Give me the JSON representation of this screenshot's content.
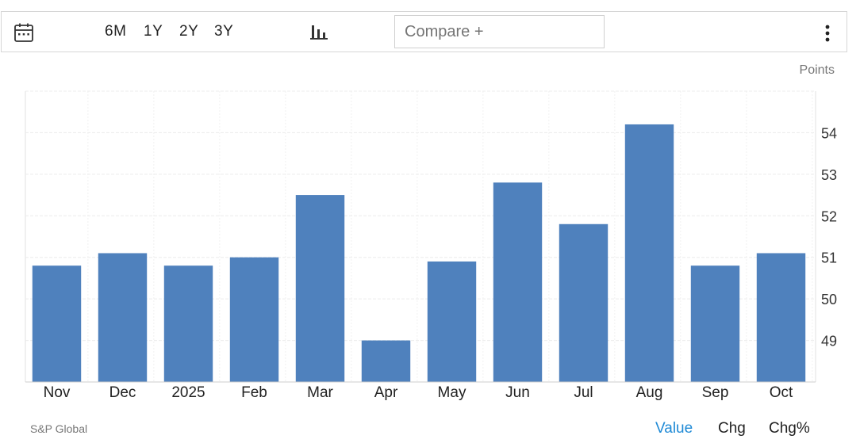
{
  "toolbar": {
    "ranges": [
      "6M",
      "1Y",
      "2Y",
      "3Y"
    ],
    "compare_placeholder": "Compare +",
    "icons": [
      "calendar-icon",
      "bar-chart-icon",
      "more-vertical-icon"
    ]
  },
  "units_label": "Points",
  "source": "S&P Global",
  "footer": {
    "value": "Value",
    "chg": "Chg",
    "chg_pct": "Chg%"
  },
  "colors": {
    "bar": "#4f81bd",
    "accent": "#1f8ad6",
    "grid": "#ececec"
  },
  "chart_data": {
    "type": "bar",
    "categories": [
      "Nov",
      "Dec",
      "2025",
      "Feb",
      "Mar",
      "Apr",
      "May",
      "Jun",
      "Jul",
      "Aug",
      "Sep",
      "Oct"
    ],
    "values": [
      50.8,
      51.1,
      50.8,
      51.0,
      52.5,
      49.0,
      50.9,
      52.8,
      51.8,
      54.2,
      50.8,
      51.1
    ],
    "ylabel": "Points",
    "yticks": [
      49,
      50,
      51,
      52,
      53,
      54
    ],
    "ylim": [
      48.0,
      55.0
    ],
    "grid": true,
    "y_axis_side": "right"
  }
}
